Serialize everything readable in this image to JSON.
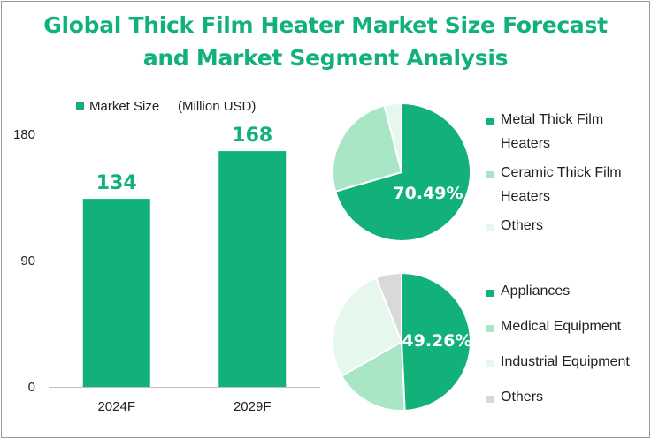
{
  "title_line1": "Global Thick Film Heater Market Size Forecast",
  "title_line2": "and Market Segment Analysis",
  "colors": {
    "accent": "#12b17a",
    "light": "#a8e6c6",
    "lighter": "#e6f7ee",
    "gray": "#d9d9d9"
  },
  "chart_data": [
    {
      "type": "bar",
      "series": [
        {
          "name": "Market Size\t(Million USD)",
          "values": [
            134,
            168
          ]
        }
      ],
      "categories": [
        "2024F",
        "2029F"
      ],
      "ylim": [
        0,
        180
      ],
      "yticks": [
        "0",
        "90",
        "180"
      ],
      "data_labels": [
        "134",
        "168"
      ]
    },
    {
      "type": "pie",
      "labels": [
        "Metal Thick Film Heaters",
        "Ceramic Thick Film Heaters",
        "Others"
      ],
      "values": [
        70.49,
        25.5,
        4.01
      ],
      "data_label": "70.49%"
    },
    {
      "type": "pie",
      "labels": [
        "Appliances",
        "Medical Equipment",
        "Industrial Equipment",
        "Others"
      ],
      "values": [
        49.26,
        17.5,
        27.2,
        6.04
      ],
      "data_label": "49.26%"
    }
  ]
}
